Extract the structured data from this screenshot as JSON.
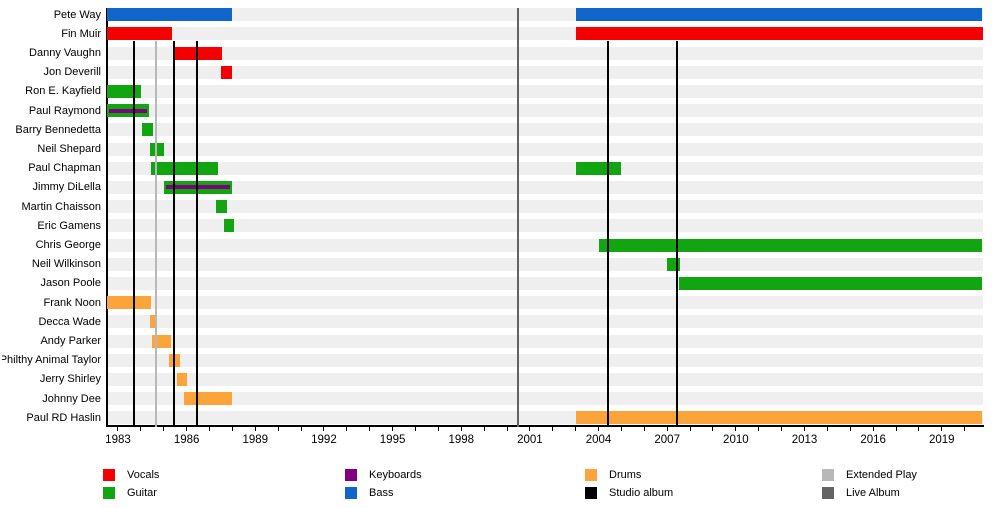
{
  "chart_data": {
    "type": "timeline",
    "title": "",
    "x_axis": {
      "unit": "year",
      "plot_start": 1982.52,
      "plot_end": 2020.8,
      "labeled_ticks": [
        "1983",
        "1986",
        "1989",
        "1992",
        "1995",
        "1998",
        "2001",
        "2004",
        "2007",
        "2010",
        "2013",
        "2016",
        "2019"
      ],
      "labeled_tick_years": [
        1983,
        1986,
        1989,
        1992,
        1995,
        1998,
        2001,
        2004,
        2007,
        2010,
        2013,
        2016,
        2019
      ],
      "minor_tick_interval_years": 1,
      "minor_tick_first_year": 1983,
      "minor_tick_last_year": 2020
    },
    "colors": {
      "vocals": "#f40000",
      "guitar": "#12a512",
      "keyboards": "#800080",
      "bass": "#1166cb",
      "drums": "#faa43a",
      "studio_album": "#000000",
      "extended_play": "#b8b8b8",
      "live_album": "#636363",
      "row_stripe": "#efefef"
    },
    "rows": [
      {
        "name": "Pete Way",
        "periods": [
          {
            "start": 1982.52,
            "end": 1988.0,
            "roles": [
              "bass"
            ]
          },
          {
            "start": 2003.0,
            "end": 2020.75,
            "roles": [
              "bass"
            ]
          }
        ]
      },
      {
        "name": "Fin Muir",
        "periods": [
          {
            "start": 1982.52,
            "end": 1985.35,
            "roles": [
              "vocals"
            ]
          },
          {
            "start": 2003.0,
            "end": 2020.8,
            "roles": [
              "vocals"
            ]
          }
        ]
      },
      {
        "name": "Danny Vaughn",
        "periods": [
          {
            "start": 1985.5,
            "end": 1987.55,
            "roles": [
              "vocals"
            ]
          }
        ]
      },
      {
        "name": "Jon Deverill",
        "periods": [
          {
            "start": 1987.5,
            "end": 1988.0,
            "roles": [
              "vocals"
            ]
          }
        ]
      },
      {
        "name": "Ron E. Kayfield",
        "periods": [
          {
            "start": 1982.52,
            "end": 1984.0,
            "roles": [
              "guitar"
            ]
          }
        ]
      },
      {
        "name": "Paul Raymond",
        "periods": [
          {
            "start": 1982.52,
            "end": 1984.35,
            "roles": [
              "guitar",
              "keyboards"
            ]
          }
        ]
      },
      {
        "name": "Barry Bennedetta",
        "periods": [
          {
            "start": 1984.05,
            "end": 1984.55,
            "roles": [
              "guitar"
            ]
          }
        ]
      },
      {
        "name": "Neil Shepard",
        "periods": [
          {
            "start": 1984.4,
            "end": 1985.0,
            "roles": [
              "guitar"
            ]
          }
        ]
      },
      {
        "name": "Paul Chapman",
        "periods": [
          {
            "start": 1984.45,
            "end": 1987.35,
            "roles": [
              "guitar"
            ]
          },
          {
            "start": 2003.0,
            "end": 2005.0,
            "roles": [
              "guitar"
            ]
          }
        ]
      },
      {
        "name": "Jimmy DiLella",
        "periods": [
          {
            "start": 1985.0,
            "end": 1988.0,
            "roles": [
              "guitar",
              "keyboards"
            ]
          }
        ]
      },
      {
        "name": "Martin Chaisson",
        "periods": [
          {
            "start": 1987.3,
            "end": 1987.75,
            "roles": [
              "guitar"
            ]
          }
        ]
      },
      {
        "name": "Eric Gamens",
        "periods": [
          {
            "start": 1987.65,
            "end": 1988.05,
            "roles": [
              "guitar"
            ]
          }
        ]
      },
      {
        "name": "Chris George",
        "periods": [
          {
            "start": 2004.0,
            "end": 2020.75,
            "roles": [
              "guitar"
            ]
          }
        ]
      },
      {
        "name": "Neil Wilkinson",
        "periods": [
          {
            "start": 2007.0,
            "end": 2007.55,
            "roles": [
              "guitar"
            ]
          }
        ]
      },
      {
        "name": "Jason Poole",
        "periods": [
          {
            "start": 2007.5,
            "end": 2020.75,
            "roles": [
              "guitar"
            ]
          }
        ]
      },
      {
        "name": "Frank Noon",
        "periods": [
          {
            "start": 1982.52,
            "end": 1984.45,
            "roles": [
              "drums"
            ]
          }
        ]
      },
      {
        "name": "Decca Wade",
        "periods": [
          {
            "start": 1984.4,
            "end": 1984.62,
            "roles": [
              "drums"
            ]
          }
        ]
      },
      {
        "name": "Andy Parker",
        "periods": [
          {
            "start": 1984.5,
            "end": 1985.3,
            "roles": [
              "drums"
            ]
          }
        ]
      },
      {
        "name": "Phil Philthy Animal Taylor",
        "periods": [
          {
            "start": 1985.25,
            "end": 1985.7,
            "roles": [
              "drums"
            ]
          }
        ]
      },
      {
        "name": "Jerry Shirley",
        "periods": [
          {
            "start": 1985.6,
            "end": 1986.0,
            "roles": [
              "drums"
            ]
          }
        ]
      },
      {
        "name": "Johnny Dee",
        "periods": [
          {
            "start": 1985.9,
            "end": 1988.0,
            "roles": [
              "drums"
            ]
          }
        ]
      },
      {
        "name": "Paul RD Haslin",
        "periods": [
          {
            "start": 2003.0,
            "end": 2020.75,
            "roles": [
              "drums"
            ]
          }
        ]
      }
    ],
    "releases": [
      {
        "type": "studio_album",
        "year": 1983.7
      },
      {
        "type": "extended_play",
        "year": 1984.66
      },
      {
        "type": "studio_album",
        "year": 1985.45
      },
      {
        "type": "studio_album",
        "year": 1986.45
      },
      {
        "type": "live_album",
        "year": 2000.48
      },
      {
        "type": "studio_album",
        "year": 2004.4
      },
      {
        "type": "studio_album",
        "year": 2007.42
      }
    ],
    "legend_position": "bottom"
  },
  "legend": {
    "items": [
      {
        "label": "Vocals",
        "color": "vocals",
        "col": 0,
        "row": 0
      },
      {
        "label": "Guitar",
        "color": "guitar",
        "col": 0,
        "row": 1
      },
      {
        "label": "Keyboards",
        "color": "keyboards",
        "col": 1,
        "row": 0
      },
      {
        "label": "Bass",
        "color": "bass",
        "col": 1,
        "row": 1
      },
      {
        "label": "Drums",
        "color": "drums",
        "col": 2,
        "row": 0
      },
      {
        "label": "Studio album",
        "color": "studio_album",
        "col": 2,
        "row": 1
      },
      {
        "label": "Extended Play",
        "color": "extended_play",
        "col": 3,
        "row": 0
      },
      {
        "label": "Live Album",
        "color": "live_album",
        "col": 3,
        "row": 1
      }
    ]
  }
}
